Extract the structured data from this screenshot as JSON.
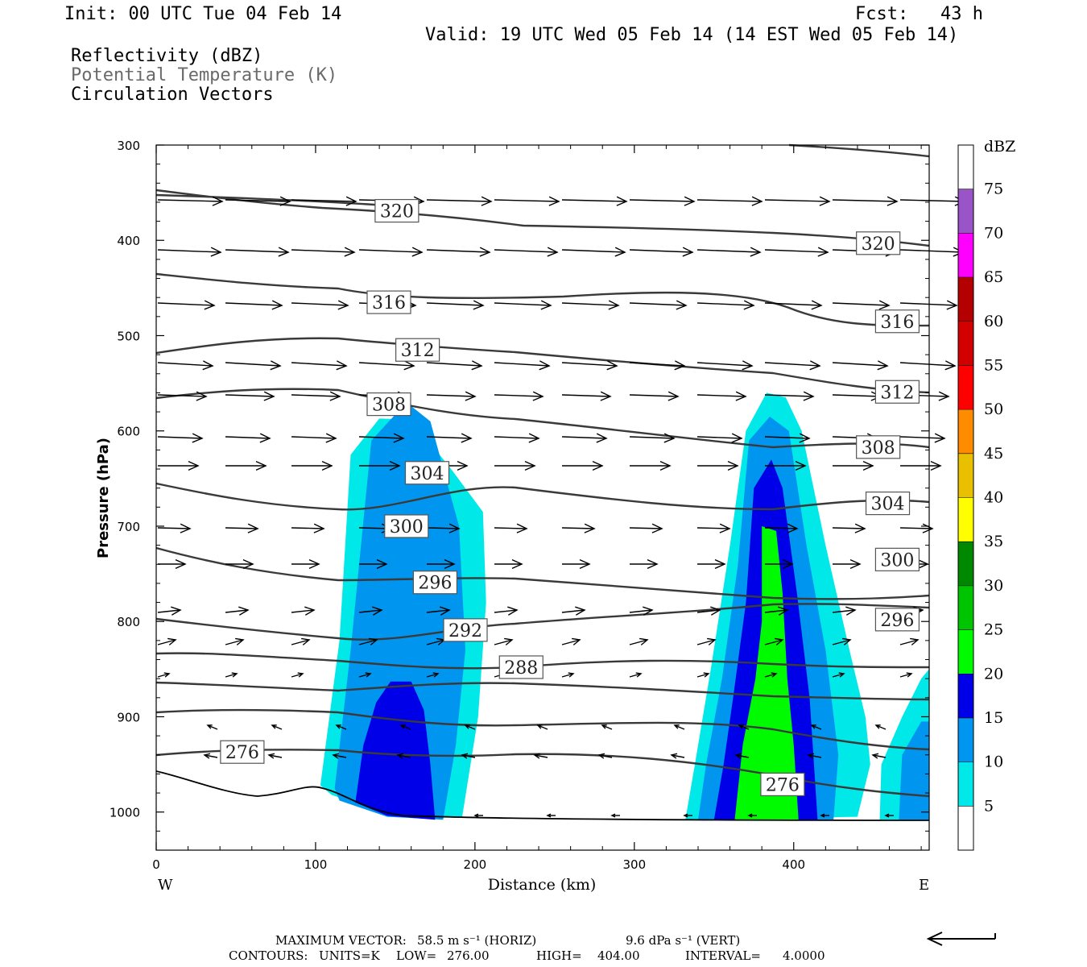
{
  "header": {
    "init": "Init: 00 UTC Tue 04 Feb 14",
    "fcst": "Fcst:   43 h",
    "valid": "Valid: 19 UTC Wed 05 Feb 14 (14 EST Wed 05 Feb 14)",
    "field1": "Reflectivity (dBZ)",
    "field2": "Potential Temperature (K)",
    "field3": "Circulation Vectors"
  },
  "footer": {
    "max_vector_label": "MAXIMUM VECTOR:",
    "max_vector_horiz": "58.5 m s⁻¹ (HORIZ)",
    "max_vector_vert": "9.6 dPa s⁻¹ (VERT)",
    "contours_label": "CONTOURS:",
    "units": "UNITS=K",
    "low_label": "LOW=",
    "low": "276.00",
    "high_label": "HIGH=",
    "high": "404.00",
    "interval_label": "INTERVAL=",
    "interval": "4.0000"
  },
  "chart_data": {
    "type": "cross-section",
    "xlabel": "Distance (km)",
    "ylabel": "Pressure (hPa)",
    "xlim": [
      0,
      485
    ],
    "ylim": [
      1040,
      300
    ],
    "x_ticks": [
      0,
      100,
      200,
      300,
      400
    ],
    "y_ticks": [
      300,
      400,
      500,
      600,
      700,
      800,
      900,
      1000
    ],
    "x_end_labels": {
      "left": "W",
      "right": "E"
    },
    "colorbar": {
      "title": "dBZ",
      "levels": [
        5,
        10,
        15,
        20,
        25,
        30,
        35,
        40,
        45,
        50,
        55,
        60,
        65,
        70,
        75
      ],
      "colors": [
        "#ffffff",
        "#00e8e8",
        "#0096f0",
        "#0000e8",
        "#00fa00",
        "#00c400",
        "#008800",
        "#ffff00",
        "#e8c000",
        "#ff8c00",
        "#ff0000",
        "#d20000",
        "#b40000",
        "#ff00ff",
        "#9955c8",
        "#ffffff"
      ]
    },
    "reflectivity_regions": [
      {
        "dbz": 5,
        "points": [
          [
            103,
            972
          ],
          [
            115,
            820
          ],
          [
            122,
            625
          ],
          [
            140,
            587
          ],
          [
            160,
            588
          ],
          [
            185,
            640
          ],
          [
            205,
            685
          ],
          [
            207,
            780
          ],
          [
            202,
            900
          ],
          [
            192,
            1005
          ],
          [
            150,
            1005
          ],
          [
            110,
            982
          ]
        ]
      },
      {
        "dbz": 10,
        "points": [
          [
            112,
            975
          ],
          [
            122,
            830
          ],
          [
            135,
            610
          ],
          [
            157,
            570
          ],
          [
            172,
            590
          ],
          [
            190,
            700
          ],
          [
            194,
            830
          ],
          [
            188,
            930
          ],
          [
            180,
            1008
          ],
          [
            145,
            1005
          ],
          [
            115,
            988
          ]
        ]
      },
      {
        "dbz": 15,
        "points": [
          [
            125,
            990
          ],
          [
            130,
            930
          ],
          [
            138,
            885
          ],
          [
            147,
            863
          ],
          [
            160,
            863
          ],
          [
            168,
            893
          ],
          [
            172,
            950
          ],
          [
            175,
            1008
          ],
          [
            145,
            1004
          ]
        ]
      },
      {
        "dbz": 5,
        "points": [
          [
            332,
            1008
          ],
          [
            338,
            950
          ],
          [
            348,
            850
          ],
          [
            360,
            720
          ],
          [
            370,
            600
          ],
          [
            383,
            560
          ],
          [
            395,
            565
          ],
          [
            405,
            600
          ],
          [
            420,
            720
          ],
          [
            435,
            830
          ],
          [
            445,
            900
          ],
          [
            448,
            950
          ],
          [
            440,
            1005
          ]
        ]
      },
      {
        "dbz": 10,
        "points": [
          [
            340,
            1008
          ],
          [
            345,
            950
          ],
          [
            355,
            860
          ],
          [
            365,
            740
          ],
          [
            372,
            610
          ],
          [
            385,
            585
          ],
          [
            397,
            600
          ],
          [
            408,
            720
          ],
          [
            420,
            830
          ],
          [
            428,
            940
          ],
          [
            425,
            1008
          ]
        ]
      },
      {
        "dbz": 15,
        "points": [
          [
            350,
            1008
          ],
          [
            356,
            950
          ],
          [
            362,
            880
          ],
          [
            370,
            780
          ],
          [
            375,
            660
          ],
          [
            386,
            630
          ],
          [
            393,
            660
          ],
          [
            402,
            770
          ],
          [
            410,
            880
          ],
          [
            415,
            1008
          ]
        ]
      },
      {
        "dbz": 20,
        "points": [
          [
            363,
            1008
          ],
          [
            368,
            930
          ],
          [
            376,
            860
          ],
          [
            380,
            800
          ],
          [
            380,
            700
          ],
          [
            389,
            705
          ],
          [
            393,
            770
          ],
          [
            396,
            860
          ],
          [
            400,
            930
          ],
          [
            403,
            1008
          ]
        ]
      },
      {
        "dbz": 5,
        "points": [
          [
            454,
            1008
          ],
          [
            455,
            950
          ],
          [
            468,
            900
          ],
          [
            480,
            860
          ],
          [
            485,
            850
          ],
          [
            485,
            1008
          ]
        ]
      },
      {
        "dbz": 10,
        "points": [
          [
            466,
            1008
          ],
          [
            468,
            940
          ],
          [
            480,
            905
          ],
          [
            485,
            905
          ],
          [
            485,
            1008
          ]
        ]
      }
    ],
    "theta_labels": [
      {
        "value": "320",
        "x": 151,
        "p": 369
      },
      {
        "value": "320",
        "x": 453,
        "p": 403
      },
      {
        "value": "316",
        "x": 146,
        "p": 465
      },
      {
        "value": "316",
        "x": 465,
        "p": 485
      },
      {
        "value": "312",
        "x": 164,
        "p": 515
      },
      {
        "value": "312",
        "x": 465,
        "p": 559
      },
      {
        "value": "308",
        "x": 146,
        "p": 572
      },
      {
        "value": "308",
        "x": 453,
        "p": 617
      },
      {
        "value": "304",
        "x": 170,
        "p": 644
      },
      {
        "value": "304",
        "x": 459,
        "p": 676
      },
      {
        "value": "300",
        "x": 157,
        "p": 700
      },
      {
        "value": "300",
        "x": 465,
        "p": 735
      },
      {
        "value": "296",
        "x": 175,
        "p": 759
      },
      {
        "value": "296",
        "x": 465,
        "p": 798
      },
      {
        "value": "292",
        "x": 194,
        "p": 809
      },
      {
        "value": "288",
        "x": 229,
        "p": 848
      },
      {
        "value": "276",
        "x": 54,
        "p": 937
      },
      {
        "value": "276",
        "x": 393,
        "p": 971
      }
    ]
  }
}
